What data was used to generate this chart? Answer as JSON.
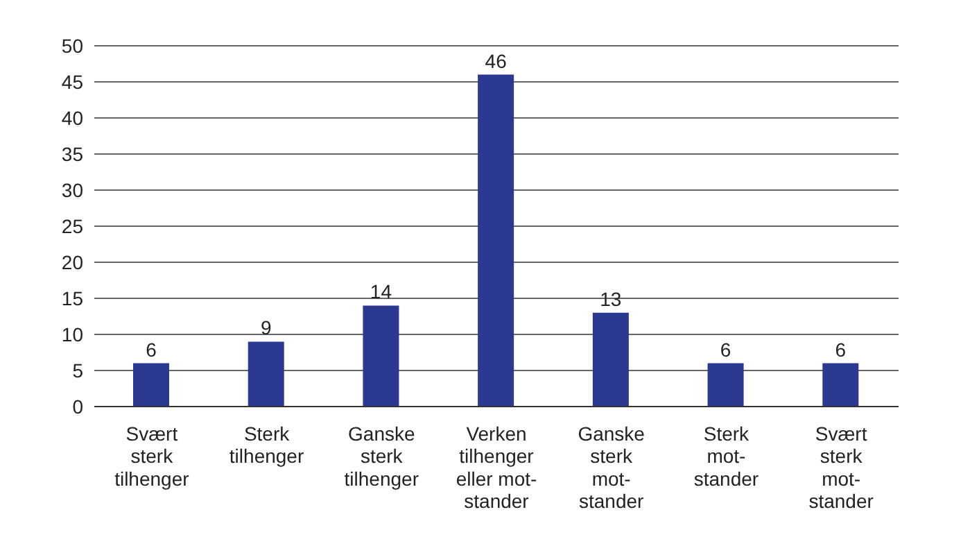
{
  "chart_data": {
    "type": "bar",
    "categories": [
      "Svært\nsterk\ntilhenger",
      "Sterk\ntilhenger",
      "Ganske\nsterk\ntilhenger",
      "Verken\ntilhenger\neller mot-\nstander",
      "Ganske\nsterk\nmot-\nstander",
      "Sterk\nmot-\nstander",
      "Svært\nsterk\nmot-\nstander"
    ],
    "values": [
      6,
      9,
      14,
      46,
      13,
      6,
      6
    ],
    "color": "#2b3990",
    "ylim": [
      0,
      50
    ],
    "yticks": [
      0,
      5,
      10,
      15,
      20,
      25,
      30,
      35,
      40,
      45,
      50
    ],
    "grid": "y",
    "data_labels": true
  }
}
